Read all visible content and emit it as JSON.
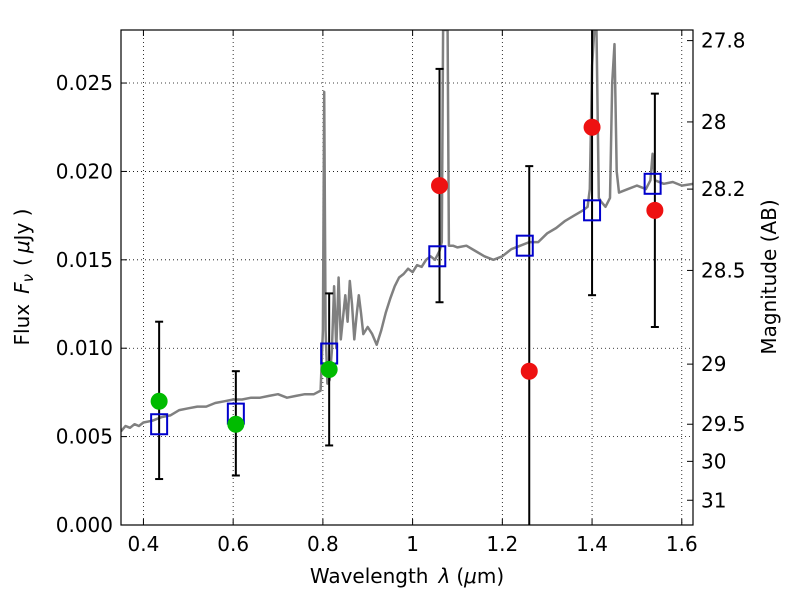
{
  "chart_data": {
    "type": "scatter",
    "xlabel": {
      "prefix": "Wavelength",
      "symbol": "λ",
      "unit_open": "(",
      "unit_mu": "μ",
      "unit_rest": "m)"
    },
    "ylabel": {
      "prefix": "Flux",
      "symbol": "F",
      "subscript": "ν",
      "unit_open": "(",
      "unit_mu": "μ",
      "unit_rest": "Jy )"
    },
    "y2label": "Magnitude (AB)",
    "xlim": [
      0.35,
      1.625
    ],
    "ylim": [
      0.0,
      0.028
    ],
    "grid": true,
    "x_ticks": [
      {
        "value": 0.4,
        "label": "0.4"
      },
      {
        "value": 0.6,
        "label": "0.6"
      },
      {
        "value": 0.8,
        "label": "0.8"
      },
      {
        "value": 1.0,
        "label": "1"
      },
      {
        "value": 1.2,
        "label": "1.2"
      },
      {
        "value": 1.4,
        "label": "1.4"
      },
      {
        "value": 1.6,
        "label": "1.6"
      }
    ],
    "y_ticks": [
      {
        "value": 0.0,
        "label": "0.000"
      },
      {
        "value": 0.005,
        "label": "0.005"
      },
      {
        "value": 0.01,
        "label": "0.010"
      },
      {
        "value": 0.015,
        "label": "0.015"
      },
      {
        "value": 0.02,
        "label": "0.020"
      },
      {
        "value": 0.025,
        "label": "0.025"
      }
    ],
    "y2_ticks": [
      {
        "flux": 0.0274,
        "label": "27.8"
      },
      {
        "flux": 0.0228,
        "label": "28"
      },
      {
        "flux": 0.019,
        "label": "28.2"
      },
      {
        "flux": 0.0144,
        "label": "28.5"
      },
      {
        "flux": 0.0091,
        "label": "29"
      },
      {
        "flux": 0.0057,
        "label": "29.5"
      },
      {
        "flux": 0.0036,
        "label": "30"
      },
      {
        "flux": 0.0014,
        "label": "31"
      }
    ],
    "model_sed": {
      "color": "#808080",
      "points": [
        [
          0.35,
          0.0053
        ],
        [
          0.36,
          0.0056
        ],
        [
          0.37,
          0.0055
        ],
        [
          0.38,
          0.0057
        ],
        [
          0.39,
          0.0056
        ],
        [
          0.4,
          0.0058
        ],
        [
          0.42,
          0.0059
        ],
        [
          0.44,
          0.0061
        ],
        [
          0.46,
          0.0062
        ],
        [
          0.48,
          0.0065
        ],
        [
          0.5,
          0.0066
        ],
        [
          0.52,
          0.0067
        ],
        [
          0.54,
          0.0067
        ],
        [
          0.56,
          0.0069
        ],
        [
          0.58,
          0.007
        ],
        [
          0.6,
          0.0071
        ],
        [
          0.62,
          0.0071
        ],
        [
          0.64,
          0.0072
        ],
        [
          0.66,
          0.0072
        ],
        [
          0.68,
          0.0073
        ],
        [
          0.7,
          0.0074
        ],
        [
          0.72,
          0.0072
        ],
        [
          0.74,
          0.0073
        ],
        [
          0.76,
          0.0074
        ],
        [
          0.78,
          0.0074
        ],
        [
          0.795,
          0.0076
        ],
        [
          0.8,
          0.011
        ],
        [
          0.803,
          0.0245
        ],
        [
          0.806,
          0.011
        ],
        [
          0.81,
          0.008
        ],
        [
          0.815,
          0.0082
        ],
        [
          0.82,
          0.0099
        ],
        [
          0.825,
          0.0135
        ],
        [
          0.83,
          0.01
        ],
        [
          0.835,
          0.014
        ],
        [
          0.84,
          0.0105
        ],
        [
          0.85,
          0.013
        ],
        [
          0.855,
          0.0115
        ],
        [
          0.86,
          0.0138
        ],
        [
          0.865,
          0.0125
        ],
        [
          0.87,
          0.0105
        ],
        [
          0.875,
          0.0118
        ],
        [
          0.88,
          0.013
        ],
        [
          0.885,
          0.012
        ],
        [
          0.89,
          0.0108
        ],
        [
          0.9,
          0.0112
        ],
        [
          0.91,
          0.0108
        ],
        [
          0.92,
          0.0102
        ],
        [
          0.93,
          0.011
        ],
        [
          0.94,
          0.012
        ],
        [
          0.95,
          0.0128
        ],
        [
          0.96,
          0.0135
        ],
        [
          0.97,
          0.014
        ],
        [
          0.98,
          0.0142
        ],
        [
          0.99,
          0.0145
        ],
        [
          1.0,
          0.0143
        ],
        [
          1.01,
          0.0147
        ],
        [
          1.02,
          0.0146
        ],
        [
          1.03,
          0.015
        ],
        [
          1.04,
          0.0152
        ],
        [
          1.05,
          0.015
        ],
        [
          1.06,
          0.0155
        ],
        [
          1.065,
          0.016
        ],
        [
          1.068,
          0.028
        ],
        [
          1.072,
          0.028
        ],
        [
          1.075,
          0.028
        ],
        [
          1.078,
          0.028
        ],
        [
          1.081,
          0.0158
        ],
        [
          1.09,
          0.0158
        ],
        [
          1.1,
          0.0157
        ],
        [
          1.12,
          0.0158
        ],
        [
          1.14,
          0.0155
        ],
        [
          1.16,
          0.0152
        ],
        [
          1.18,
          0.015
        ],
        [
          1.2,
          0.0152
        ],
        [
          1.22,
          0.0156
        ],
        [
          1.24,
          0.0158
        ],
        [
          1.26,
          0.016
        ],
        [
          1.28,
          0.016
        ],
        [
          1.3,
          0.0165
        ],
        [
          1.32,
          0.0168
        ],
        [
          1.34,
          0.0172
        ],
        [
          1.36,
          0.0175
        ],
        [
          1.38,
          0.0178
        ],
        [
          1.39,
          0.018
        ],
        [
          1.395,
          0.019
        ],
        [
          1.4,
          0.026
        ],
        [
          1.405,
          0.028
        ],
        [
          1.41,
          0.028
        ],
        [
          1.415,
          0.0185
        ],
        [
          1.42,
          0.0183
        ],
        [
          1.43,
          0.018
        ],
        [
          1.44,
          0.0185
        ],
        [
          1.445,
          0.025
        ],
        [
          1.45,
          0.0272
        ],
        [
          1.455,
          0.02
        ],
        [
          1.46,
          0.0188
        ],
        [
          1.48,
          0.019
        ],
        [
          1.5,
          0.0192
        ],
        [
          1.52,
          0.019
        ],
        [
          1.53,
          0.0195
        ],
        [
          1.535,
          0.021
        ],
        [
          1.54,
          0.0195
        ],
        [
          1.56,
          0.0193
        ],
        [
          1.58,
          0.0194
        ],
        [
          1.6,
          0.0192
        ],
        [
          1.625,
          0.0193
        ]
      ]
    },
    "model_photometry": {
      "color": "#0000cc",
      "marker": "open-square",
      "points": [
        {
          "x": 0.435,
          "y": 0.0057
        },
        {
          "x": 0.606,
          "y": 0.0063
        },
        {
          "x": 0.814,
          "y": 0.0097
        },
        {
          "x": 1.055,
          "y": 0.0152
        },
        {
          "x": 1.25,
          "y": 0.0158
        },
        {
          "x": 1.4,
          "y": 0.0178
        },
        {
          "x": 1.535,
          "y": 0.0193
        }
      ]
    },
    "observed": [
      {
        "x": 0.435,
        "y": 0.007,
        "err_low": 0.0026,
        "err_high": 0.0115,
        "color": "#00bb00"
      },
      {
        "x": 0.606,
        "y": 0.0057,
        "err_low": 0.0028,
        "err_high": 0.0087,
        "color": "#00bb00"
      },
      {
        "x": 0.814,
        "y": 0.0088,
        "err_low": 0.0045,
        "err_high": 0.0131,
        "color": "#00bb00"
      },
      {
        "x": 1.06,
        "y": 0.0192,
        "err_low": 0.0126,
        "err_high": 0.0258,
        "color": "#ee1111"
      },
      {
        "x": 1.26,
        "y": 0.0087,
        "err_low": 0.0,
        "err_high": 0.0203,
        "color": "#ee1111"
      },
      {
        "x": 1.4,
        "y": 0.0225,
        "err_low": 0.013,
        "err_high": 0.028,
        "color": "#ee1111"
      },
      {
        "x": 1.54,
        "y": 0.0178,
        "err_low": 0.0112,
        "err_high": 0.0244,
        "color": "#ee1111"
      }
    ]
  }
}
